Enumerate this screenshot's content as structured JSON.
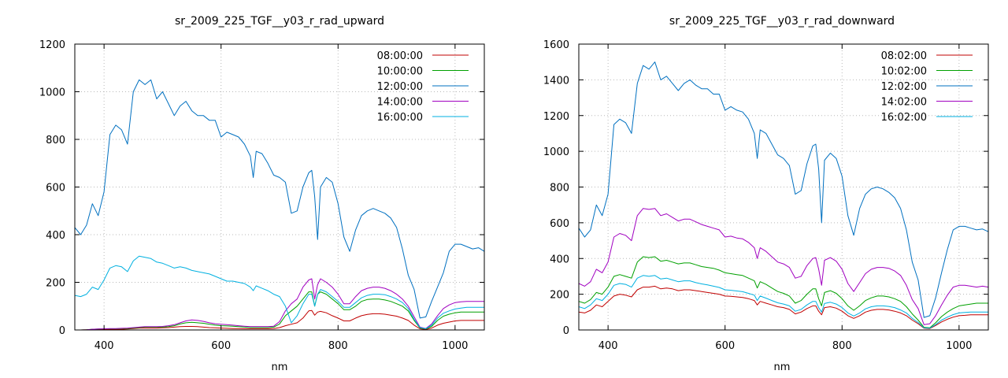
{
  "colors": {
    "08h": "#c00000",
    "10h": "#00a000",
    "12h": "#0070c0",
    "14h": "#a000c0",
    "16h": "#00b0e0"
  },
  "chart_data": [
    {
      "type": "line",
      "title": "sr_2009_225_TGF__y03_r_rad_upward",
      "xlabel": "nm",
      "ylabel": "",
      "xlim": [
        350,
        1050
      ],
      "ylim": [
        0,
        1200
      ],
      "xticks": [
        400,
        600,
        800,
        1000
      ],
      "yticks": [
        0,
        200,
        400,
        600,
        800,
        1000,
        1200
      ],
      "grid": true,
      "legend": "top-right",
      "x": [
        350,
        360,
        370,
        380,
        390,
        400,
        410,
        420,
        430,
        440,
        450,
        460,
        470,
        480,
        490,
        500,
        510,
        520,
        530,
        540,
        550,
        560,
        570,
        580,
        590,
        600,
        610,
        620,
        630,
        640,
        650,
        655,
        660,
        670,
        680,
        690,
        700,
        710,
        720,
        730,
        740,
        750,
        755,
        760,
        765,
        770,
        780,
        790,
        800,
        810,
        820,
        830,
        840,
        850,
        860,
        870,
        880,
        890,
        900,
        910,
        920,
        930,
        940,
        950,
        960,
        970,
        980,
        990,
        1000,
        1010,
        1020,
        1030,
        1040,
        1050
      ],
      "series": [
        {
          "name": "08:00:00",
          "color": "08h",
          "values": [
            0,
            0,
            1,
            2,
            2,
            3,
            3,
            3,
            3,
            4,
            6,
            8,
            8,
            8,
            8,
            9,
            10,
            12,
            14,
            15,
            15,
            14,
            12,
            10,
            9,
            8,
            7,
            6,
            6,
            5,
            5,
            5,
            5,
            5,
            5,
            6,
            10,
            18,
            24,
            30,
            50,
            80,
            82,
            62,
            75,
            78,
            72,
            60,
            50,
            38,
            38,
            50,
            60,
            65,
            68,
            68,
            66,
            62,
            58,
            50,
            40,
            20,
            5,
            2,
            8,
            20,
            28,
            33,
            38,
            40,
            40,
            40,
            40,
            40
          ]
        },
        {
          "name": "10:00:00",
          "color": "10h",
          "values": [
            0,
            0,
            1,
            3,
            4,
            5,
            5,
            5,
            6,
            6,
            8,
            10,
            12,
            12,
            12,
            12,
            14,
            18,
            25,
            30,
            32,
            30,
            28,
            24,
            20,
            18,
            17,
            16,
            14,
            12,
            10,
            10,
            10,
            10,
            10,
            12,
            25,
            60,
            80,
            100,
            130,
            160,
            160,
            100,
            150,
            160,
            150,
            130,
            110,
            85,
            85,
            100,
            120,
            128,
            130,
            130,
            126,
            120,
            110,
            100,
            80,
            40,
            8,
            4,
            15,
            40,
            58,
            66,
            72,
            75,
            75,
            75,
            75,
            75
          ]
        },
        {
          "name": "12:00:00",
          "color": "12h",
          "values": [
            430,
            400,
            440,
            530,
            480,
            580,
            820,
            860,
            840,
            780,
            1000,
            1050,
            1030,
            1050,
            970,
            1000,
            950,
            900,
            940,
            960,
            920,
            900,
            900,
            880,
            880,
            810,
            830,
            820,
            810,
            780,
            730,
            640,
            750,
            740,
            700,
            650,
            640,
            620,
            490,
            500,
            600,
            660,
            670,
            560,
            380,
            600,
            640,
            620,
            530,
            390,
            330,
            420,
            480,
            500,
            510,
            500,
            490,
            470,
            430,
            340,
            230,
            170,
            50,
            55,
            120,
            180,
            240,
            330,
            360,
            360,
            350,
            340,
            345,
            330
          ]
        },
        {
          "name": "14:00:00",
          "color": "14h",
          "values": [
            0,
            0,
            1,
            3,
            4,
            5,
            6,
            6,
            7,
            8,
            10,
            12,
            14,
            14,
            14,
            15,
            18,
            22,
            30,
            38,
            42,
            40,
            36,
            30,
            26,
            24,
            22,
            20,
            18,
            16,
            14,
            14,
            14,
            14,
            14,
            16,
            35,
            80,
            110,
            130,
            180,
            210,
            215,
            130,
            190,
            215,
            200,
            180,
            150,
            110,
            110,
            140,
            165,
            175,
            180,
            180,
            175,
            165,
            150,
            130,
            100,
            55,
            12,
            6,
            25,
            60,
            90,
            105,
            115,
            118,
            120,
            120,
            120,
            120
          ]
        },
        {
          "name": "16:00:00",
          "color": "16h",
          "values": [
            145,
            140,
            150,
            180,
            170,
            210,
            260,
            270,
            265,
            245,
            290,
            310,
            305,
            300,
            285,
            280,
            270,
            260,
            265,
            260,
            250,
            245,
            240,
            235,
            225,
            215,
            205,
            205,
            200,
            195,
            180,
            165,
            185,
            175,
            165,
            150,
            140,
            100,
            30,
            60,
            110,
            150,
            150,
            100,
            150,
            170,
            160,
            140,
            120,
            95,
            95,
            115,
            135,
            145,
            150,
            150,
            148,
            140,
            130,
            115,
            90,
            45,
            10,
            5,
            20,
            50,
            70,
            80,
            88,
            92,
            95,
            95,
            95,
            95
          ]
        }
      ]
    },
    {
      "type": "line",
      "title": "sr_2009_225_TGF__y03_r_rad_downward",
      "xlabel": "nm",
      "ylabel": "",
      "xlim": [
        350,
        1050
      ],
      "ylim": [
        0,
        1600
      ],
      "xticks": [
        400,
        600,
        800,
        1000
      ],
      "yticks": [
        0,
        200,
        400,
        600,
        800,
        1000,
        1200,
        1400,
        1600
      ],
      "grid": true,
      "legend": "top-right",
      "x": [
        350,
        360,
        370,
        380,
        390,
        400,
        410,
        420,
        430,
        440,
        450,
        460,
        470,
        480,
        490,
        500,
        510,
        520,
        530,
        540,
        550,
        560,
        570,
        580,
        590,
        600,
        610,
        620,
        630,
        640,
        650,
        655,
        660,
        670,
        680,
        690,
        700,
        710,
        720,
        730,
        740,
        750,
        755,
        760,
        765,
        770,
        780,
        790,
        800,
        810,
        820,
        830,
        840,
        850,
        860,
        870,
        880,
        890,
        900,
        910,
        920,
        930,
        940,
        950,
        960,
        970,
        980,
        990,
        1000,
        1010,
        1020,
        1030,
        1040,
        1050
      ],
      "series": [
        {
          "name": "08:02:00",
          "color": "08h",
          "values": [
            100,
            95,
            110,
            140,
            130,
            160,
            190,
            200,
            195,
            185,
            225,
            240,
            240,
            245,
            230,
            235,
            230,
            220,
            225,
            225,
            220,
            215,
            210,
            205,
            200,
            190,
            188,
            185,
            182,
            175,
            165,
            140,
            160,
            150,
            140,
            130,
            125,
            115,
            90,
            100,
            120,
            135,
            135,
            105,
            85,
            125,
            130,
            122,
            105,
            80,
            65,
            80,
            100,
            110,
            115,
            115,
            112,
            105,
            95,
            80,
            55,
            35,
            10,
            8,
            25,
            45,
            60,
            72,
            80,
            82,
            85,
            85,
            85,
            85
          ]
        },
        {
          "name": "10:02:00",
          "color": "10h",
          "values": [
            160,
            150,
            170,
            210,
            200,
            240,
            300,
            310,
            300,
            290,
            380,
            410,
            405,
            410,
            385,
            390,
            380,
            370,
            375,
            375,
            365,
            355,
            350,
            345,
            335,
            320,
            315,
            310,
            305,
            290,
            275,
            235,
            270,
            255,
            235,
            215,
            205,
            190,
            150,
            165,
            200,
            230,
            230,
            175,
            135,
            210,
            220,
            205,
            175,
            135,
            110,
            135,
            165,
            180,
            190,
            190,
            185,
            175,
            160,
            130,
            90,
            55,
            15,
            12,
            40,
            75,
            100,
            120,
            135,
            140,
            145,
            150,
            150,
            150
          ]
        },
        {
          "name": "12:02:00",
          "color": "12h",
          "values": [
            570,
            520,
            560,
            700,
            640,
            760,
            1150,
            1180,
            1160,
            1100,
            1380,
            1480,
            1460,
            1500,
            1400,
            1420,
            1380,
            1340,
            1380,
            1400,
            1370,
            1350,
            1350,
            1320,
            1320,
            1230,
            1250,
            1230,
            1220,
            1180,
            1100,
            960,
            1120,
            1100,
            1040,
            980,
            960,
            920,
            760,
            780,
            930,
            1030,
            1040,
            900,
            600,
            950,
            990,
            960,
            860,
            640,
            530,
            680,
            760,
            790,
            800,
            790,
            770,
            740,
            680,
            560,
            380,
            280,
            70,
            80,
            180,
            320,
            450,
            560,
            580,
            580,
            570,
            560,
            565,
            550
          ]
        },
        {
          "name": "14:02:00",
          "color": "14h",
          "values": [
            260,
            245,
            270,
            340,
            320,
            380,
            520,
            540,
            530,
            500,
            640,
            680,
            675,
            680,
            640,
            650,
            630,
            610,
            620,
            620,
            605,
            590,
            580,
            570,
            560,
            520,
            525,
            515,
            510,
            490,
            460,
            400,
            460,
            440,
            410,
            380,
            370,
            350,
            290,
            300,
            360,
            400,
            405,
            340,
            250,
            390,
            405,
            385,
            340,
            260,
            215,
            265,
            315,
            340,
            350,
            350,
            345,
            330,
            305,
            250,
            170,
            120,
            30,
            35,
            80,
            140,
            195,
            240,
            250,
            250,
            245,
            240,
            245,
            240
          ]
        },
        {
          "name": "16:02:00",
          "color": "16h",
          "values": [
            130,
            120,
            140,
            175,
            165,
            200,
            250,
            260,
            255,
            240,
            290,
            305,
            300,
            305,
            285,
            290,
            280,
            270,
            275,
            275,
            265,
            258,
            252,
            245,
            238,
            225,
            222,
            218,
            214,
            205,
            195,
            165,
            190,
            178,
            165,
            152,
            145,
            135,
            105,
            115,
            140,
            160,
            160,
            125,
            100,
            148,
            155,
            145,
            125,
            95,
            78,
            95,
            118,
            130,
            135,
            135,
            132,
            125,
            112,
            95,
            65,
            42,
            12,
            10,
            30,
            55,
            72,
            86,
            95,
            98,
            100,
            100,
            100,
            100
          ]
        }
      ]
    }
  ]
}
